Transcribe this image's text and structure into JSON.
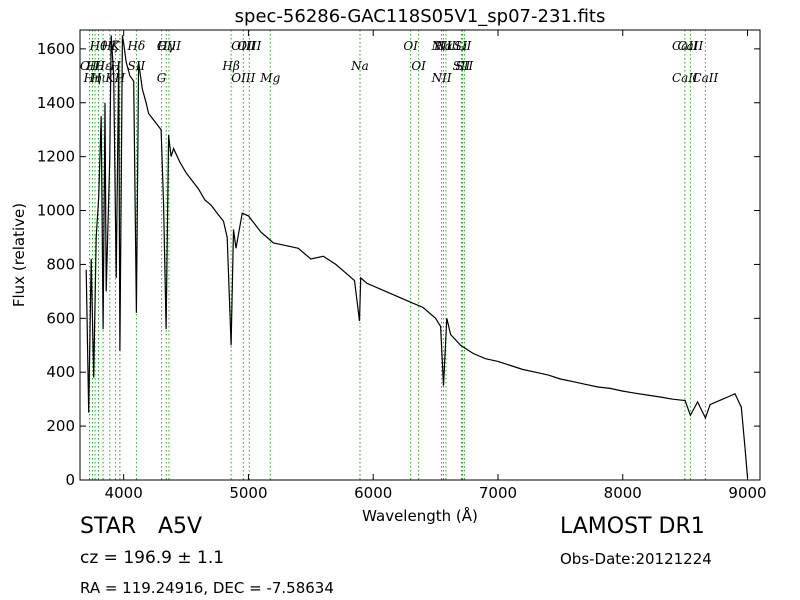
{
  "chart_data": {
    "type": "line",
    "title": "spec-56286-GAC118S05V1_sp07-231.fits",
    "xlabel": "Wavelength (Å)",
    "ylabel": "Flux (relative)",
    "xlim": [
      3650,
      9100
    ],
    "ylim": [
      0,
      1670
    ],
    "xticks": [
      4000,
      5000,
      6000,
      7000,
      8000,
      9000
    ],
    "yticks": [
      0,
      200,
      400,
      600,
      800,
      1000,
      1200,
      1400,
      1600
    ],
    "grid": false,
    "series": [
      {
        "x": [
          3700,
          3720,
          3740,
          3760,
          3780,
          3800,
          3820,
          3835,
          3850,
          3860,
          3889,
          3900,
          3920,
          3940,
          3960,
          3970,
          3990,
          4000,
          4020,
          4050,
          4080,
          4102,
          4120,
          4150,
          4180,
          4200,
          4250,
          4300,
          4320,
          4340,
          4360,
          4380,
          4400,
          4450,
          4500,
          4550,
          4600,
          4650,
          4700,
          4750,
          4800,
          4830,
          4861,
          4880,
          4900,
          4950,
          5000,
          5050,
          5100,
          5150,
          5200,
          5300,
          5400,
          5500,
          5600,
          5700,
          5800,
          5850,
          5890,
          5900,
          5950,
          6000,
          6100,
          6200,
          6300,
          6400,
          6500,
          6540,
          6563,
          6590,
          6620,
          6700,
          6800,
          6900,
          7000,
          7100,
          7200,
          7300,
          7400,
          7500,
          7600,
          7700,
          7800,
          7900,
          8000,
          8100,
          8200,
          8300,
          8400,
          8500,
          8542,
          8600,
          8662,
          8700,
          8800,
          8850,
          8900,
          8950,
          8980,
          9000
        ],
        "y": [
          780,
          250,
          820,
          380,
          900,
          1050,
          1350,
          560,
          1400,
          700,
          1200,
          1650,
          1500,
          750,
          1550,
          480,
          1650,
          1620,
          1550,
          1500,
          1480,
          620,
          1550,
          1450,
          1400,
          1360,
          1330,
          1300,
          1020,
          560,
          1280,
          1200,
          1230,
          1180,
          1140,
          1110,
          1080,
          1040,
          1020,
          990,
          960,
          900,
          500,
          930,
          860,
          990,
          980,
          950,
          920,
          900,
          880,
          870,
          860,
          820,
          830,
          800,
          760,
          740,
          590,
          750,
          730,
          720,
          700,
          680,
          660,
          640,
          600,
          570,
          350,
          600,
          540,
          500,
          470,
          450,
          440,
          425,
          410,
          400,
          390,
          375,
          365,
          355,
          345,
          340,
          330,
          322,
          315,
          308,
          300,
          295,
          240,
          290,
          230,
          280,
          300,
          310,
          320,
          270,
          120,
          10
        ]
      }
    ],
    "lines": [
      {
        "wavelength": 3727,
        "upper": "",
        "lower": "OII"
      },
      {
        "wavelength": 3750,
        "upper": "",
        "lower": "Hη"
      },
      {
        "wavelength": 3771,
        "upper": "",
        "lower": "Hθ"
      },
      {
        "wavelength": 3798,
        "upper": "Hθ",
        "lower": "Hι"
      },
      {
        "wavelength": 3835,
        "upper": "",
        "lower": "Hε"
      },
      {
        "wavelength": 3889,
        "upper": "Hζ",
        "lower": "K"
      },
      {
        "wavelength": 3934,
        "upper": "K",
        "lower": "H"
      },
      {
        "wavelength": 3970,
        "upper": "",
        "lower": "H"
      },
      {
        "wavelength": 4102,
        "upper": "Hδ",
        "lower": "SII"
      },
      {
        "wavelength": 4304,
        "upper": "",
        "lower": "G"
      },
      {
        "wavelength": 4341,
        "upper": "Hγ",
        "lower": ""
      },
      {
        "wavelength": 4363,
        "upper": "OIII",
        "lower": ""
      },
      {
        "wavelength": 4861,
        "upper": "",
        "lower": "Hβ"
      },
      {
        "wavelength": 4959,
        "upper": "OIII",
        "lower": "OIII"
      },
      {
        "wavelength": 5007,
        "upper": "OIII",
        "lower": ""
      },
      {
        "wavelength": 5175,
        "upper": "",
        "lower": "Mg"
      },
      {
        "wavelength": 5894,
        "upper": "",
        "lower": "Na"
      },
      {
        "wavelength": 6300,
        "upper": "OI",
        "lower": ""
      },
      {
        "wavelength": 6364,
        "upper": "",
        "lower": "OI"
      },
      {
        "wavelength": 6548,
        "upper": "NII",
        "lower": "NII"
      },
      {
        "wavelength": 6563,
        "upper": "Hα",
        "lower": ""
      },
      {
        "wavelength": 6583,
        "upper": "NII",
        "lower": ""
      },
      {
        "wavelength": 6707,
        "upper": "Li",
        "lower": "SII"
      },
      {
        "wavelength": 6716,
        "upper": "SII",
        "lower": ""
      },
      {
        "wavelength": 6731,
        "upper": "",
        "lower": "SII"
      },
      {
        "wavelength": 8498,
        "upper": "CaII",
        "lower": "CaII"
      },
      {
        "wavelength": 8542,
        "upper": "CaII",
        "lower": ""
      },
      {
        "wavelength": 8662,
        "upper": "",
        "lower": "CaII"
      }
    ],
    "colors": {
      "spectrum": "#000000",
      "line_markers": "#2ca02c"
    }
  },
  "info": {
    "object_type": "STAR",
    "spectral_class": "A5V",
    "cz": "cz = 196.9 ± 1.1",
    "coords": "RA = 119.24916, DEC = -7.58634",
    "survey": "LAMOST DR1",
    "obs_date": "Obs-Date:20121224"
  }
}
